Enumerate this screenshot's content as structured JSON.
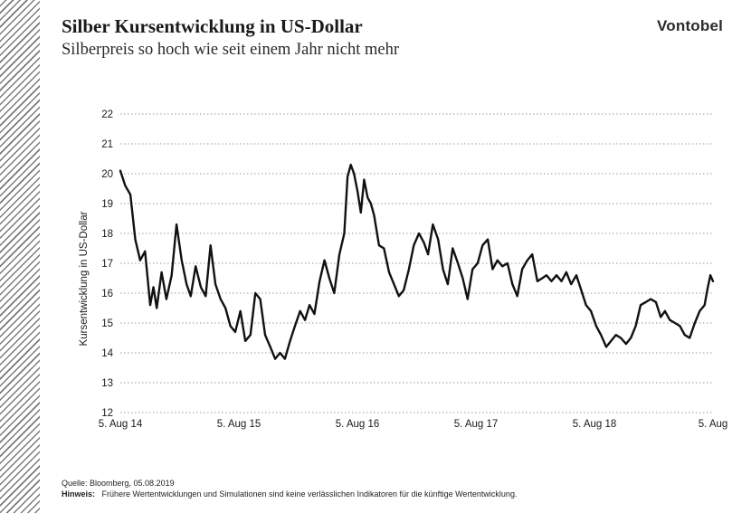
{
  "header": {
    "title": "Silber Kursentwicklung in US-Dollar",
    "subtitle": "Silberpreis so hoch wie seit einem Jahr nicht mehr",
    "logo_text": "Vontobel"
  },
  "footer": {
    "source": "Quelle: Bloomberg, 05.08.2019",
    "note_label": "Hinweis:",
    "note_text": "Frühere Wertentwicklungen und Simulationen sind keine verlässlichen Indikatoren für die künftige Wertentwicklung."
  },
  "colors": {
    "line": "#111111",
    "grid": "#9a9a9a",
    "text": "#1a1a1a"
  },
  "chart_data": {
    "type": "line",
    "title": "Silber Kursentwicklung in US-Dollar",
    "subtitle": "Silberpreis so hoch wie seit einem Jahr nicht mehr",
    "ylabel": "Kursentwicklung in US-Dollar",
    "xlabel": "",
    "ylim": [
      12,
      22
    ],
    "yticks": [
      12,
      13,
      14,
      15,
      16,
      17,
      18,
      19,
      20,
      21,
      22
    ],
    "xlim": [
      "2014-08-05",
      "2019-08-05"
    ],
    "xtick_labels": [
      "5. Aug 14",
      "5. Aug 15",
      "5. Aug 16",
      "5. Aug 17",
      "5. Aug 18",
      "5. Aug"
    ],
    "grid": "horizontal dotted",
    "series": [
      {
        "x": [
          "2014-08-05",
          "2014-08-20",
          "2014-09-05",
          "2014-09-20",
          "2014-10-05",
          "2014-10-20",
          "2014-11-05",
          "2014-11-15",
          "2014-11-25",
          "2014-12-10",
          "2014-12-25",
          "2015-01-10",
          "2015-01-25",
          "2015-02-10",
          "2015-02-25",
          "2015-03-10",
          "2015-03-25",
          "2015-04-10",
          "2015-04-25",
          "2015-05-10",
          "2015-05-25",
          "2015-06-10",
          "2015-06-25",
          "2015-07-10",
          "2015-07-25",
          "2015-08-10",
          "2015-08-25",
          "2015-09-10",
          "2015-09-25",
          "2015-10-10",
          "2015-10-25",
          "2015-11-10",
          "2015-11-25",
          "2015-12-10",
          "2015-12-25",
          "2016-01-10",
          "2016-01-25",
          "2016-02-10",
          "2016-02-25",
          "2016-03-10",
          "2016-03-25",
          "2016-04-10",
          "2016-04-25",
          "2016-05-10",
          "2016-05-25",
          "2016-06-10",
          "2016-06-25",
          "2016-07-05",
          "2016-07-15",
          "2016-07-25",
          "2016-08-05",
          "2016-08-15",
          "2016-08-25",
          "2016-09-05",
          "2016-09-15",
          "2016-09-25",
          "2016-10-10",
          "2016-10-25",
          "2016-11-10",
          "2016-11-25",
          "2016-12-10",
          "2016-12-25",
          "2017-01-10",
          "2017-01-25",
          "2017-02-10",
          "2017-02-25",
          "2017-03-10",
          "2017-03-25",
          "2017-04-10",
          "2017-04-25",
          "2017-05-10",
          "2017-05-25",
          "2017-06-10",
          "2017-06-25",
          "2017-07-10",
          "2017-07-25",
          "2017-08-10",
          "2017-08-25",
          "2017-09-10",
          "2017-09-25",
          "2017-10-10",
          "2017-10-25",
          "2017-11-10",
          "2017-11-25",
          "2017-12-10",
          "2017-12-25",
          "2018-01-10",
          "2018-01-25",
          "2018-02-10",
          "2018-02-25",
          "2018-03-10",
          "2018-03-25",
          "2018-04-10",
          "2018-04-25",
          "2018-05-10",
          "2018-05-25",
          "2018-06-10",
          "2018-06-25",
          "2018-07-10",
          "2018-07-25",
          "2018-08-10",
          "2018-08-25",
          "2018-09-10",
          "2018-09-25",
          "2018-10-10",
          "2018-10-25",
          "2018-11-10",
          "2018-11-25",
          "2018-12-10",
          "2018-12-25",
          "2019-01-10",
          "2019-01-25",
          "2019-02-10",
          "2019-02-25",
          "2019-03-10",
          "2019-03-25",
          "2019-04-10",
          "2019-04-25",
          "2019-05-10",
          "2019-05-25",
          "2019-06-10",
          "2019-06-25",
          "2019-07-10",
          "2019-07-20",
          "2019-07-28",
          "2019-08-05"
        ],
        "y": [
          20.1,
          19.6,
          19.3,
          17.8,
          17.1,
          17.4,
          15.6,
          16.2,
          15.5,
          16.7,
          15.8,
          16.6,
          18.3,
          17.1,
          16.3,
          15.9,
          16.9,
          16.2,
          15.9,
          17.6,
          16.3,
          15.8,
          15.5,
          14.9,
          14.7,
          15.4,
          14.4,
          14.6,
          16.0,
          15.8,
          14.6,
          14.2,
          13.8,
          14.0,
          13.8,
          14.4,
          14.9,
          15.4,
          15.1,
          15.6,
          15.3,
          16.4,
          17.1,
          16.5,
          16.0,
          17.3,
          18.0,
          19.9,
          20.3,
          20.0,
          19.4,
          18.7,
          19.8,
          19.2,
          19.0,
          18.6,
          17.6,
          17.5,
          16.7,
          16.3,
          15.9,
          16.1,
          16.8,
          17.6,
          18.0,
          17.7,
          17.3,
          18.3,
          17.8,
          16.8,
          16.3,
          17.5,
          17.0,
          16.5,
          15.8,
          16.8,
          17.0,
          17.6,
          17.8,
          16.8,
          17.1,
          16.9,
          17.0,
          16.3,
          15.9,
          16.8,
          17.1,
          17.3,
          16.4,
          16.5,
          16.6,
          16.4,
          16.6,
          16.4,
          16.7,
          16.3,
          16.6,
          16.1,
          15.6,
          15.4,
          14.9,
          14.6,
          14.2,
          14.4,
          14.6,
          14.5,
          14.3,
          14.5,
          14.9,
          15.6,
          15.7,
          15.8,
          15.7,
          15.2,
          15.4,
          15.1,
          15.0,
          14.9,
          14.6,
          14.5,
          15.0,
          15.4,
          15.6,
          16.2,
          16.6,
          16.4
        ]
      }
    ]
  }
}
